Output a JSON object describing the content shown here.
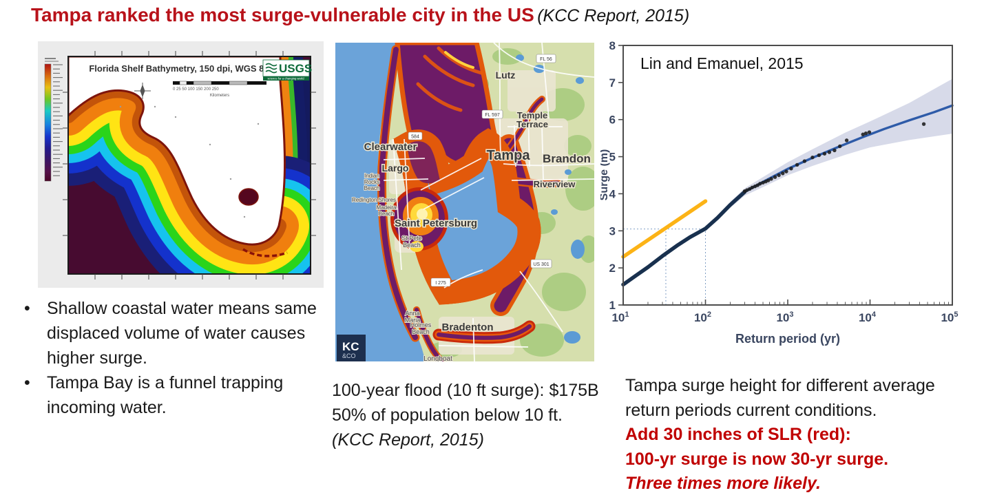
{
  "title": {
    "main": "Tampa ranked the most surge-vulnerable city in the US",
    "citation": "(KCC Report, 2015)"
  },
  "colors": {
    "title_red": "#b8121a",
    "body_red": "#c00000",
    "curve_navy": "#18304e",
    "curve_blue": "#2e5ba8",
    "slr_orange": "#fcb316",
    "band_gray": "#cdd1e4"
  },
  "bathymetry_map": {
    "title": "Florida Shelf Bathymetry, 150 dpi, WGS 84",
    "usgs_logo": "USGS",
    "usgs_tagline": "science for a changing world",
    "scale_ticks": "0  25  50      100       150       200       250",
    "scale_label": "Kilometers"
  },
  "flood_map": {
    "labels": {
      "lutz": "Lutz",
      "temple_1": "Temple",
      "temple_2": "Terrace",
      "tampa": "Tampa",
      "brandon": "Brandon",
      "clearwater": "Clearwater",
      "largo": "Largo",
      "indian_1": "Indian",
      "indian_2": "Rocks",
      "indian_3": "Beach",
      "redington": "Redington Shores",
      "madeira_1": "Madeira",
      "madeira_2": "Beach",
      "saint_petersburg": "Saint Petersburg",
      "st_pete_1": "St Pete",
      "st_pete_2": "Beach",
      "riverview": "Riverview",
      "anna_1": "Anna",
      "anna_2": "Maria",
      "holmes_1": "Holmes",
      "holmes_2": "Beach",
      "bradenton": "Bradenton",
      "longboat": "Longboat"
    },
    "shields": {
      "fl56": "FL 56",
      "fl597": "FL 597",
      "fl584": "584",
      "us301": "US 301",
      "i275": "I 275"
    },
    "logo": {
      "top": "KC",
      "bottom": "&CO"
    }
  },
  "bullets": [
    "Shallow coastal water means same displaced volume of water causes higher surge.",
    "Tampa Bay is a funnel trapping incoming water."
  ],
  "flood_caption": {
    "line1": "100-year flood (10 ft surge): $175B",
    "line2": "50% of population below 10 ft.",
    "line3": "(KCC Report, 2015)"
  },
  "surge_text": {
    "black_sentence": "Tampa surge height for different average return periods current conditions.",
    "red1": "Add 30 inches of SLR (red):",
    "red2": "100-yr surge is now 30-yr surge.",
    "red3": "Three times more likely."
  },
  "chart_data": {
    "type": "line",
    "title": "Lin and Emanuel, 2015",
    "xlabel": "Return period (yr)",
    "ylabel": "Surge (m)",
    "x_scale": "log",
    "xlim": [
      10,
      100000
    ],
    "ylim": [
      1,
      8
    ],
    "x_ticks": [
      10,
      100,
      1000,
      10000,
      100000
    ],
    "y_ticks": [
      1,
      2,
      3,
      4,
      5,
      6,
      7,
      8
    ],
    "grid": false,
    "legend": "none",
    "surge_curve": {
      "name": "Surge return level (current climate)",
      "color_light": "#2e5ba8",
      "color_dark": "#18304e",
      "x": [
        10,
        14,
        20,
        30,
        45,
        65,
        100,
        140,
        200,
        300,
        500,
        1000,
        2000,
        4000,
        8000,
        15000,
        30000,
        60000,
        100000
      ],
      "y": [
        1.55,
        1.78,
        2.02,
        2.32,
        2.6,
        2.83,
        3.06,
        3.35,
        3.7,
        4.05,
        4.32,
        4.67,
        4.97,
        5.25,
        5.52,
        5.75,
        5.98,
        6.2,
        6.38
      ]
    },
    "slr_line": {
      "name": "With 30 inches SLR",
      "color": "#fcb316",
      "x": [
        10,
        100
      ],
      "y": [
        2.3,
        3.8
      ]
    },
    "confidence_band": {
      "color": "#cdd1e4",
      "x": [
        200,
        300,
        500,
        1000,
        2000,
        5000,
        10000,
        30000,
        100000
      ],
      "upper": [
        3.78,
        4.15,
        4.45,
        4.85,
        5.2,
        5.65,
        5.95,
        6.45,
        7.1
      ],
      "lower": [
        3.62,
        3.95,
        4.18,
        4.5,
        4.75,
        5.05,
        5.25,
        5.45,
        5.62
      ]
    },
    "observations": {
      "color": "#1c1c1c",
      "points": [
        [
          300,
          4.07
        ],
        [
          320,
          4.1
        ],
        [
          345,
          4.13
        ],
        [
          370,
          4.17
        ],
        [
          400,
          4.2
        ],
        [
          430,
          4.23
        ],
        [
          460,
          4.27
        ],
        [
          500,
          4.3
        ],
        [
          540,
          4.33
        ],
        [
          580,
          4.36
        ],
        [
          630,
          4.4
        ],
        [
          700,
          4.45
        ],
        [
          780,
          4.5
        ],
        [
          870,
          4.55
        ],
        [
          960,
          4.6
        ],
        [
          1100,
          4.68
        ],
        [
          1300,
          4.78
        ],
        [
          1600,
          4.88
        ],
        [
          2000,
          4.98
        ],
        [
          2400,
          5.04
        ],
        [
          2800,
          5.08
        ],
        [
          3200,
          5.12
        ],
        [
          3700,
          5.17
        ],
        [
          4300,
          5.28
        ],
        [
          5200,
          5.44
        ],
        [
          8200,
          5.6
        ],
        [
          8900,
          5.63
        ],
        [
          9800,
          5.66
        ],
        [
          45000,
          5.88
        ]
      ]
    },
    "reference_lines": {
      "color": "#7f9ec4",
      "h_y": 3.05,
      "v_x": [
        33,
        100
      ]
    }
  }
}
